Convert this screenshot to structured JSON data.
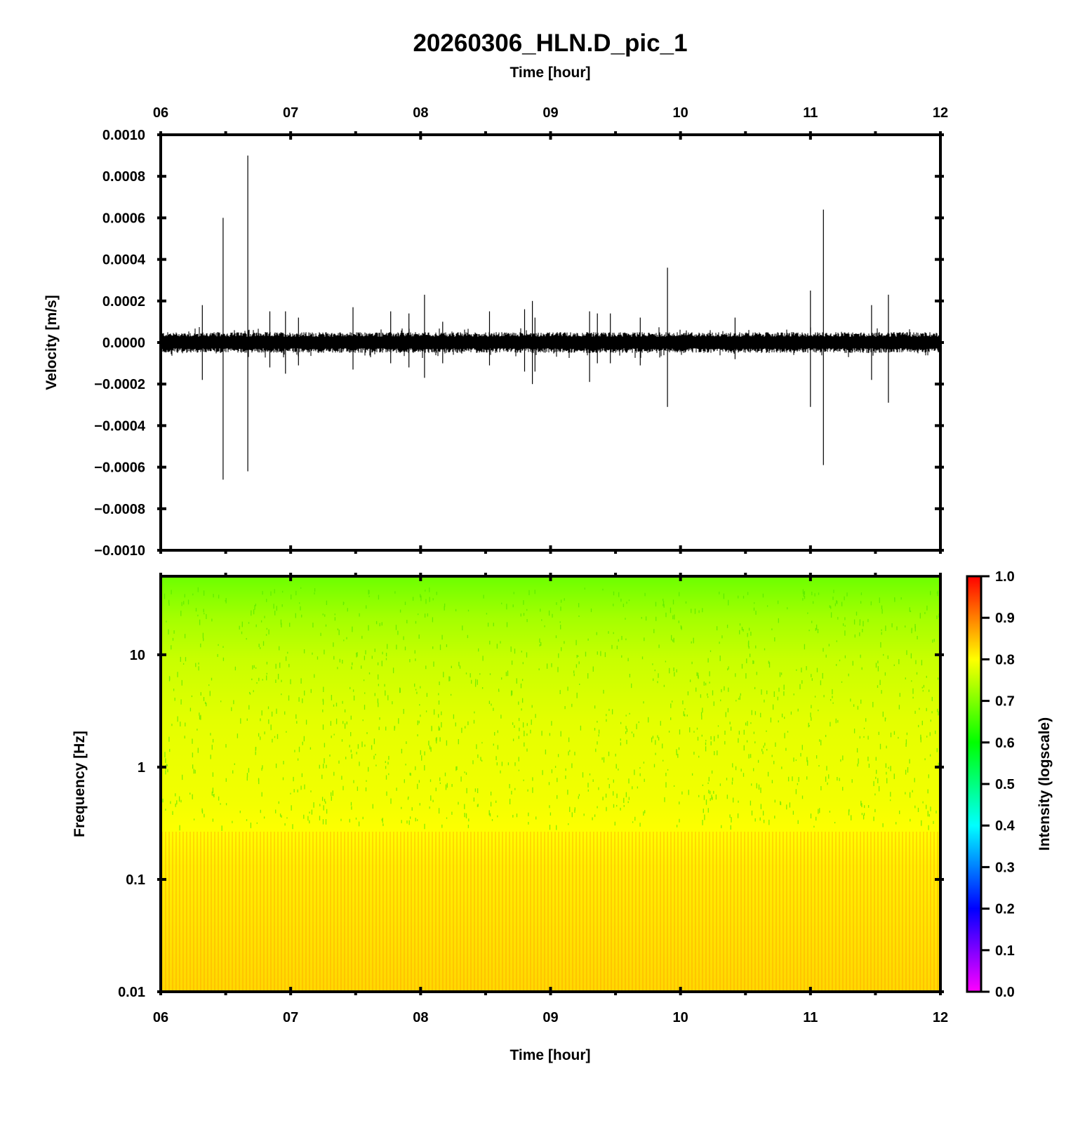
{
  "title": "20260306_HLN.D_pic_1",
  "chart_data": [
    {
      "type": "line",
      "panel": "waveform",
      "title": "20260306_HLN.D_pic_1",
      "xlabel": "Time [hour]",
      "ylabel": "Velocity [m/s]",
      "x_ticks": [
        "06",
        "07",
        "08",
        "09",
        "10",
        "11",
        "12"
      ],
      "y_ticks": [
        "0.0010",
        "0.0008",
        "0.0006",
        "0.0004",
        "0.0002",
        "0.0000",
        "−0.0002",
        "−0.0004",
        "−0.0006",
        "−0.0008",
        "−0.0010"
      ],
      "xlim": [
        6,
        12
      ],
      "ylim": [
        -0.001,
        0.001
      ],
      "grid": false,
      "background_noise_amplitude": 5e-05,
      "line_color": "#000000",
      "spikes": [
        {
          "x": 6.32,
          "pos": 0.00018,
          "neg": -0.00018
        },
        {
          "x": 6.48,
          "pos": 0.0006,
          "neg": -0.00066
        },
        {
          "x": 6.67,
          "pos": 0.0009,
          "neg": -0.00062
        },
        {
          "x": 6.84,
          "pos": 0.00015,
          "neg": -0.00012
        },
        {
          "x": 6.96,
          "pos": 0.00015,
          "neg": -0.00015
        },
        {
          "x": 7.06,
          "pos": 0.00012,
          "neg": -0.00011
        },
        {
          "x": 7.48,
          "pos": 0.00017,
          "neg": -0.00013
        },
        {
          "x": 7.77,
          "pos": 0.00015,
          "neg": -0.0001
        },
        {
          "x": 7.91,
          "pos": 0.00014,
          "neg": -0.00012
        },
        {
          "x": 8.03,
          "pos": 0.00023,
          "neg": -0.00017
        },
        {
          "x": 8.17,
          "pos": 0.0001,
          "neg": -0.0001
        },
        {
          "x": 8.53,
          "pos": 0.00015,
          "neg": -0.00011
        },
        {
          "x": 8.8,
          "pos": 0.00016,
          "neg": -0.00014
        },
        {
          "x": 8.86,
          "pos": 0.0002,
          "neg": -0.0002
        },
        {
          "x": 8.88,
          "pos": 0.00012,
          "neg": -0.00014
        },
        {
          "x": 9.3,
          "pos": 0.00015,
          "neg": -0.00019
        },
        {
          "x": 9.36,
          "pos": 0.00014,
          "neg": -0.0001
        },
        {
          "x": 9.46,
          "pos": 0.00014,
          "neg": -0.0001
        },
        {
          "x": 9.69,
          "pos": 0.00012,
          "neg": -0.00011
        },
        {
          "x": 9.9,
          "pos": 0.00036,
          "neg": -0.00031
        },
        {
          "x": 10.42,
          "pos": 0.00012,
          "neg": -8e-05
        },
        {
          "x": 11.0,
          "pos": 0.00025,
          "neg": -0.00031
        },
        {
          "x": 11.1,
          "pos": 0.00064,
          "neg": -0.00059
        },
        {
          "x": 11.47,
          "pos": 0.00018,
          "neg": -0.00018
        },
        {
          "x": 11.6,
          "pos": 0.00023,
          "neg": -0.00029
        }
      ]
    },
    {
      "type": "heatmap",
      "panel": "spectrogram",
      "xlabel": "Time [hour]",
      "ylabel": "Frequency [Hz]",
      "x_ticks": [
        "06",
        "07",
        "08",
        "09",
        "10",
        "11",
        "12"
      ],
      "y_ticks": [
        "10",
        "1",
        "0.1",
        "0.01"
      ],
      "xlim": [
        6,
        12
      ],
      "ylim": [
        0.01,
        50
      ],
      "y_scale": "log",
      "colorbar_label": "Intensity (logscale)",
      "colorbar_ticks": [
        "1.0",
        "0.9",
        "0.8",
        "0.7",
        "0.6",
        "0.5",
        "0.4",
        "0.3",
        "0.2",
        "0.1",
        "0.0"
      ],
      "colorbar_range": [
        0,
        1
      ],
      "colormap": [
        "#ff00ff",
        "#0000ff",
        "#00ffff",
        "#00ff00",
        "#ffff00",
        "#ff0000"
      ],
      "intensity_profile": [
        {
          "freq": 50,
          "value": 0.66
        },
        {
          "freq": 20,
          "value": 0.7
        },
        {
          "freq": 10,
          "value": 0.74
        },
        {
          "freq": 3,
          "value": 0.77
        },
        {
          "freq": 1,
          "value": 0.78
        },
        {
          "freq": 0.25,
          "value": 0.8
        },
        {
          "freq": 0.1,
          "value": 0.8
        },
        {
          "freq": 0.01,
          "value": 0.82
        }
      ]
    }
  ]
}
